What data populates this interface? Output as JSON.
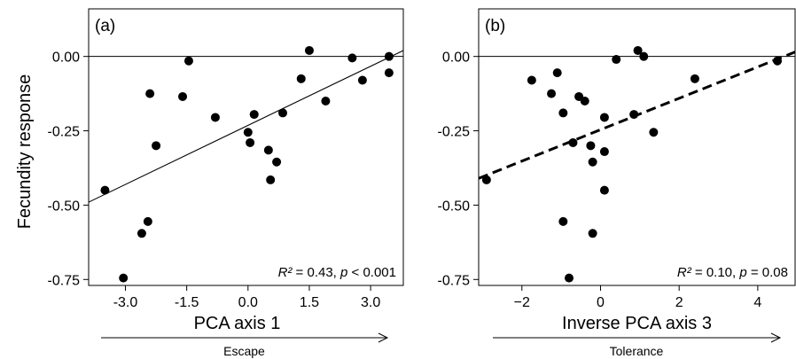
{
  "y_axis_title": "Fecundity response",
  "chart_data": [
    {
      "type": "scatter",
      "panel_label": "(a)",
      "xlabel": "PCA axis 1",
      "arrow_label": "Escape",
      "ylabel": "Fecundity response",
      "xlim": [
        -3.9,
        3.8
      ],
      "ylim": [
        -0.77,
        0.16
      ],
      "x_ticks": [
        -3.0,
        -1.5,
        0.0,
        1.5,
        3.0
      ],
      "x_tick_labels": [
        "-3.0",
        "-1.5",
        "0.0",
        "1.5",
        "3.0"
      ],
      "y_ticks": [
        0.0,
        -0.25,
        -0.5,
        -0.75
      ],
      "y_tick_labels": [
        "0.00",
        "-0.25",
        "-0.50",
        "-0.75"
      ],
      "reference_line_y": 0,
      "fit_line": {
        "style": "solid",
        "x": [
          -3.9,
          3.8
        ],
        "y": [
          -0.49,
          0.02
        ]
      },
      "stat_r2": "R² = 0.43,",
      "stat_p_symbol": "p",
      "stat_p_value": "< 0.001",
      "points": [
        {
          "x": -3.5,
          "y": -0.45
        },
        {
          "x": -3.05,
          "y": -0.745
        },
        {
          "x": -2.6,
          "y": -0.595
        },
        {
          "x": -2.45,
          "y": -0.555
        },
        {
          "x": -2.4,
          "y": -0.125
        },
        {
          "x": -2.25,
          "y": -0.3
        },
        {
          "x": -1.6,
          "y": -0.135
        },
        {
          "x": -1.45,
          "y": -0.015
        },
        {
          "x": -0.8,
          "y": -0.205
        },
        {
          "x": 0.0,
          "y": -0.255
        },
        {
          "x": 0.05,
          "y": -0.29
        },
        {
          "x": 0.15,
          "y": -0.195
        },
        {
          "x": 0.5,
          "y": -0.315
        },
        {
          "x": 0.55,
          "y": -0.415
        },
        {
          "x": 0.7,
          "y": -0.355
        },
        {
          "x": 0.85,
          "y": -0.19
        },
        {
          "x": 1.3,
          "y": -0.075
        },
        {
          "x": 1.5,
          "y": 0.02
        },
        {
          "x": 1.9,
          "y": -0.15
        },
        {
          "x": 2.55,
          "y": -0.005
        },
        {
          "x": 2.8,
          "y": -0.08
        },
        {
          "x": 3.45,
          "y": 0.0
        },
        {
          "x": 3.45,
          "y": -0.055
        }
      ]
    },
    {
      "type": "scatter",
      "panel_label": "(b)",
      "xlabel": "Inverse PCA axis 3",
      "arrow_label": "Tolerance",
      "xlim": [
        -3.1,
        4.95
      ],
      "ylim": [
        -0.77,
        0.16
      ],
      "x_ticks": [
        -2,
        0,
        2,
        4
      ],
      "x_tick_labels": [
        "−2",
        "0",
        "2",
        "4"
      ],
      "y_ticks": [
        0.0,
        -0.25,
        -0.5,
        -0.75
      ],
      "y_tick_labels": [
        "0.00",
        "-0.25",
        "-0.50",
        "-0.75"
      ],
      "reference_line_y": 0,
      "fit_line": {
        "style": "dashed",
        "x": [
          -3.1,
          4.95
        ],
        "y": [
          -0.41,
          0.015
        ]
      },
      "stat_r2": "R² = 0.10,",
      "stat_p_symbol": "p",
      "stat_p_value": "= 0.08",
      "points": [
        {
          "x": -2.9,
          "y": -0.415
        },
        {
          "x": -1.75,
          "y": -0.08
        },
        {
          "x": -1.25,
          "y": -0.125
        },
        {
          "x": -1.1,
          "y": -0.055
        },
        {
          "x": -0.95,
          "y": -0.19
        },
        {
          "x": -0.95,
          "y": -0.555
        },
        {
          "x": -0.8,
          "y": -0.745
        },
        {
          "x": -0.7,
          "y": -0.29
        },
        {
          "x": -0.55,
          "y": -0.135
        },
        {
          "x": -0.4,
          "y": -0.15
        },
        {
          "x": -0.25,
          "y": -0.3
        },
        {
          "x": -0.2,
          "y": -0.355
        },
        {
          "x": -0.2,
          "y": -0.595
        },
        {
          "x": 0.1,
          "y": -0.205
        },
        {
          "x": 0.1,
          "y": -0.32
        },
        {
          "x": 0.1,
          "y": -0.45
        },
        {
          "x": 0.4,
          "y": -0.01
        },
        {
          "x": 0.85,
          "y": -0.195
        },
        {
          "x": 0.95,
          "y": 0.02
        },
        {
          "x": 1.1,
          "y": 0.0
        },
        {
          "x": 1.35,
          "y": -0.255
        },
        {
          "x": 2.4,
          "y": -0.075
        },
        {
          "x": 4.5,
          "y": -0.015
        }
      ]
    }
  ]
}
